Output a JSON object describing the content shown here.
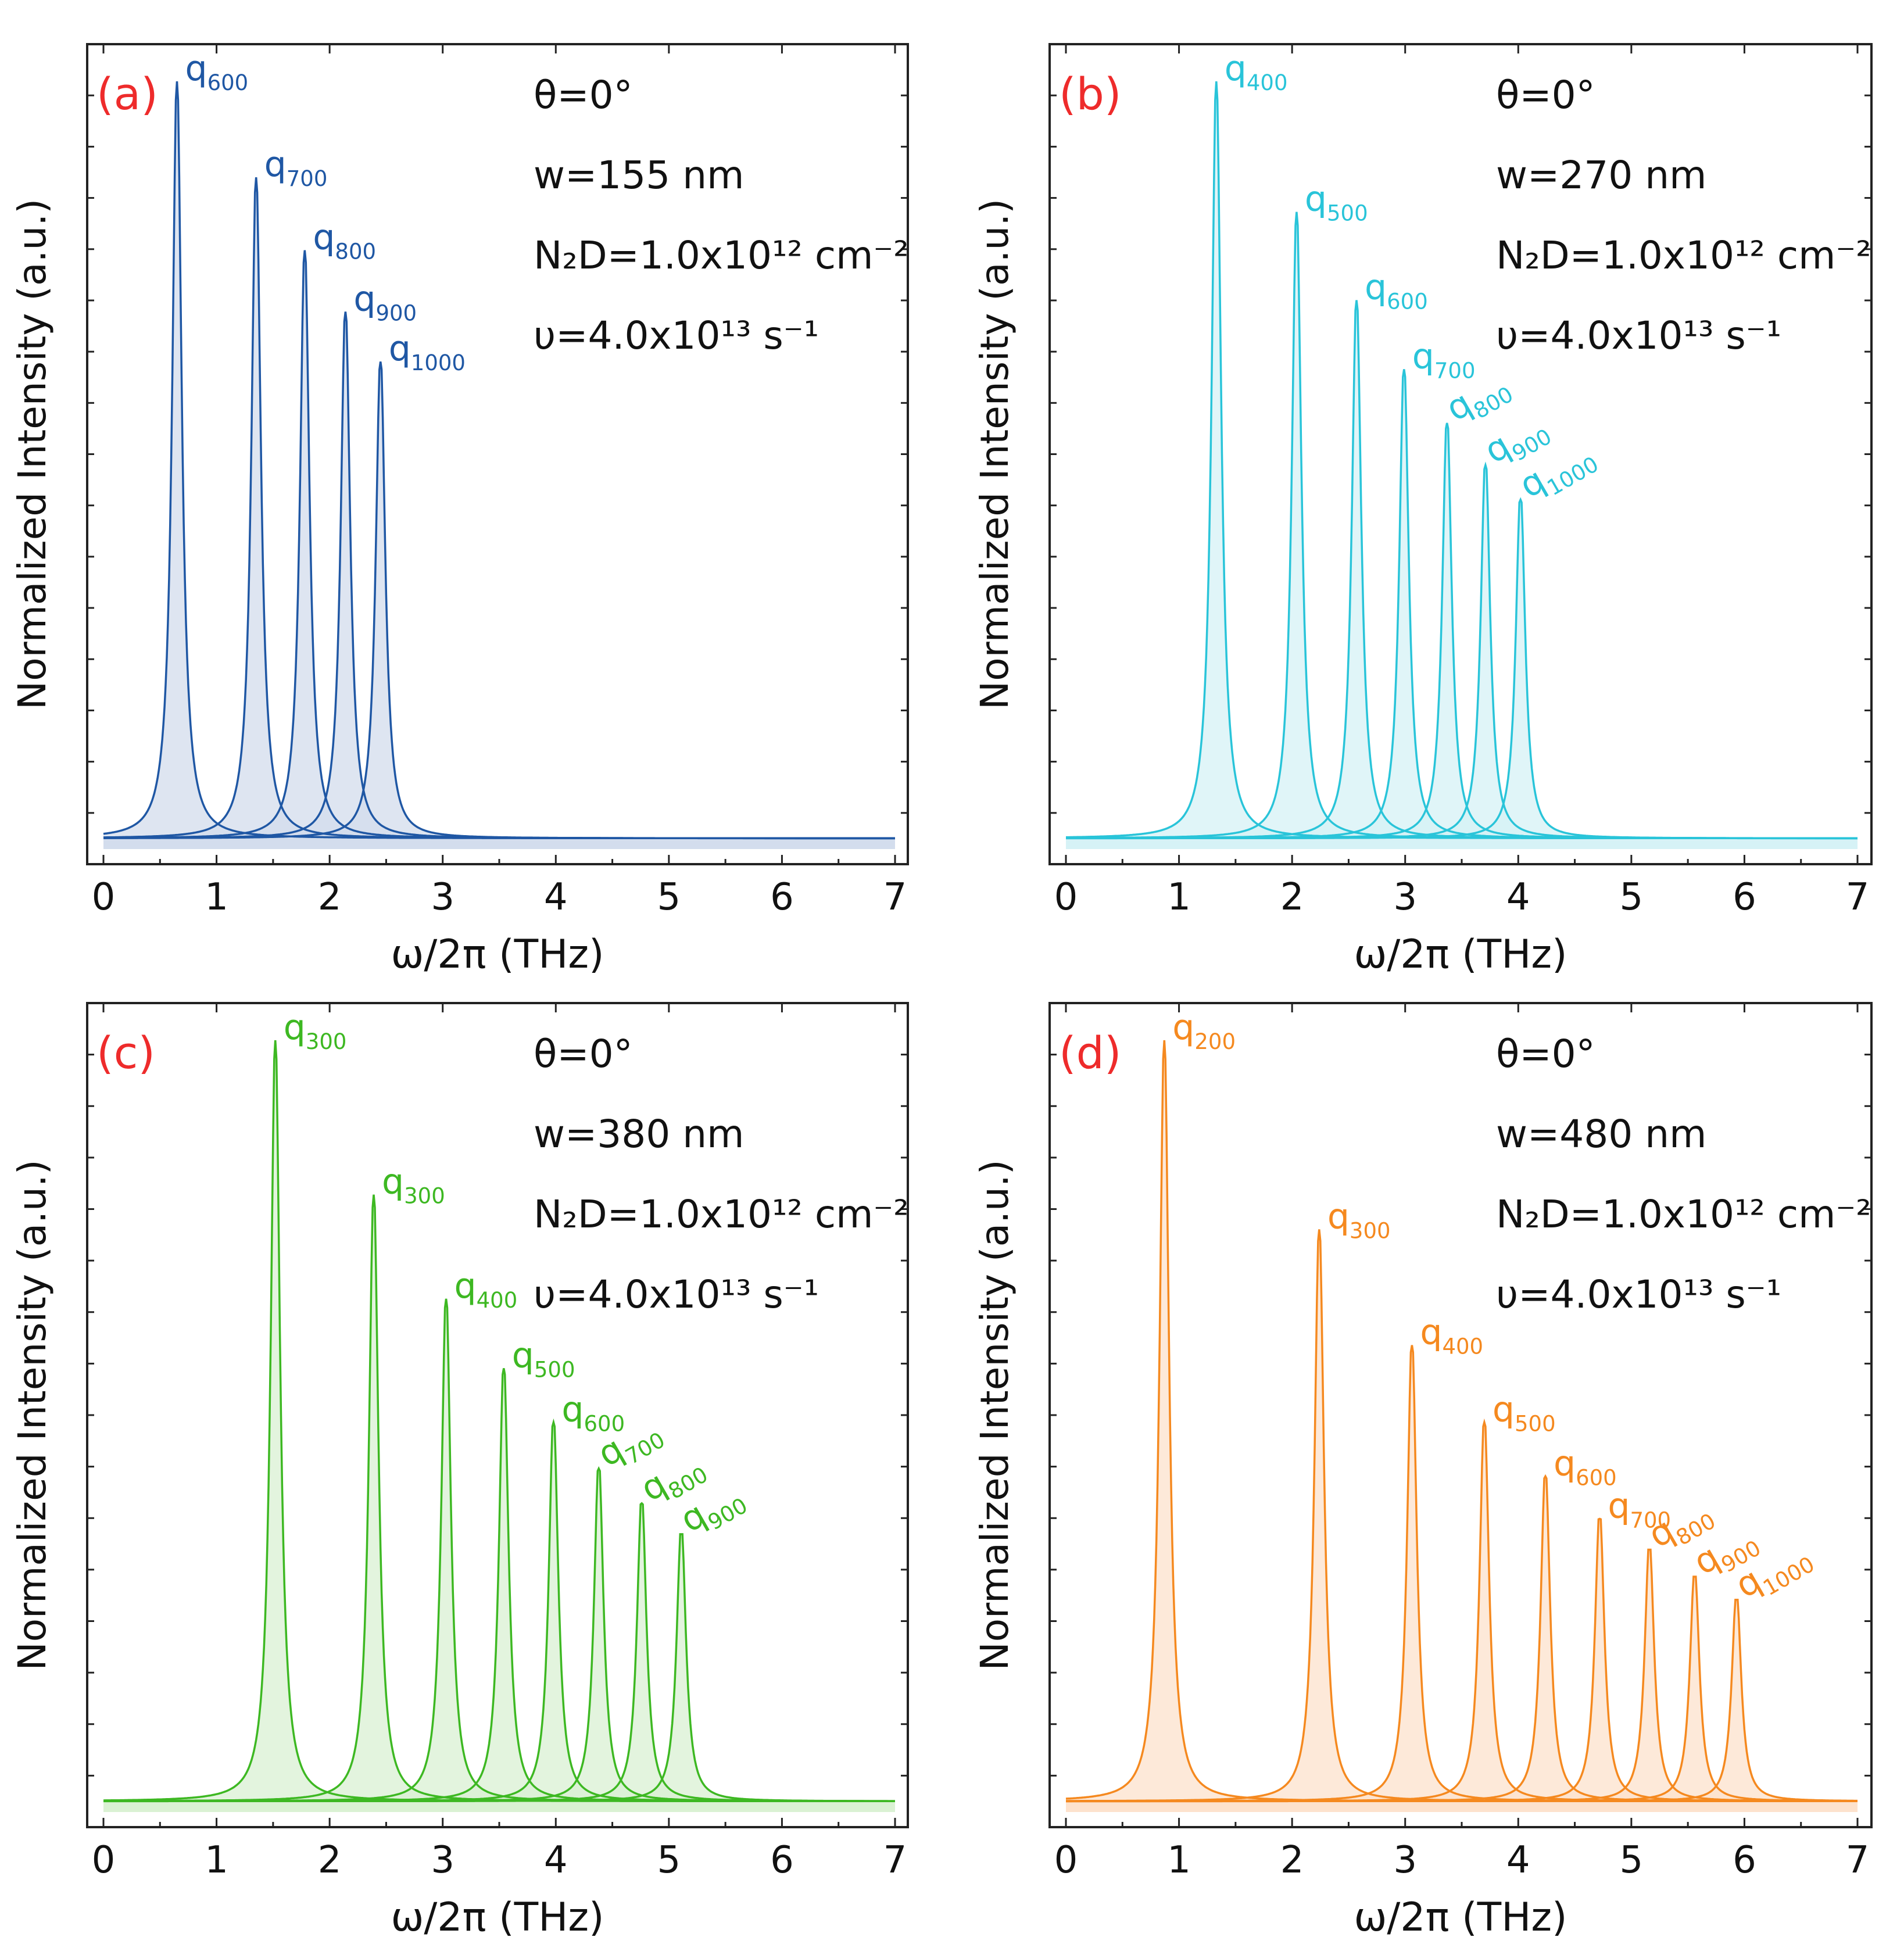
{
  "chart_data": [
    {
      "type": "line",
      "panel_label": "(a)",
      "color": "#1f57a4",
      "fill": "#d3dcec",
      "xlabel": "ω/2π (THz)",
      "ylabel": "Normalized Intensity (a.u.)",
      "xlim": [
        0,
        7
      ],
      "xticks": [
        "0",
        "1",
        "2",
        "3",
        "4",
        "5",
        "6",
        "7"
      ],
      "params": {
        "theta": "θ=0°",
        "w": "w=155 nm",
        "n2d": "N₂D=1.0x10¹² cm⁻²",
        "nu": "υ=4.0x10¹³ s⁻¹"
      },
      "series": [
        {
          "name": "q600",
          "base": "q",
          "sub": "600",
          "x": 0.65,
          "peak": 1.0
        },
        {
          "name": "q700",
          "base": "q",
          "sub": "700",
          "x": 1.35,
          "peak": 0.875
        },
        {
          "name": "q800",
          "base": "q",
          "sub": "800",
          "x": 1.78,
          "peak": 0.78
        },
        {
          "name": "q900",
          "base": "q",
          "sub": "900",
          "x": 2.14,
          "peak": 0.7
        },
        {
          "name": "q1000",
          "base": "q",
          "sub": "1000",
          "x": 2.45,
          "peak": 0.635
        }
      ]
    },
    {
      "type": "line",
      "panel_label": "(b)",
      "color": "#29c4d9",
      "fill": "#d5f1f5",
      "xlabel": "ω/2π (THz)",
      "ylabel": "Normalized Intensity (a.u.)",
      "xlim": [
        0,
        7
      ],
      "xticks": [
        "0",
        "1",
        "2",
        "3",
        "4",
        "5",
        "6",
        "7"
      ],
      "params": {
        "theta": "θ=0°",
        "w": "w=270 nm",
        "n2d": "N₂D=1.0x10¹² cm⁻²",
        "nu": "υ=4.0x10¹³ s⁻¹"
      },
      "series": [
        {
          "name": "q400",
          "base": "q",
          "sub": "400",
          "x": 1.33,
          "peak": 1.0
        },
        {
          "name": "q500",
          "base": "q",
          "sub": "500",
          "x": 2.04,
          "peak": 0.83
        },
        {
          "name": "q600",
          "base": "q",
          "sub": "600",
          "x": 2.57,
          "peak": 0.715
        },
        {
          "name": "q700",
          "base": "q",
          "sub": "700",
          "x": 2.99,
          "peak": 0.625
        },
        {
          "name": "q800",
          "base": "q",
          "sub": "800",
          "x": 3.37,
          "peak": 0.555
        },
        {
          "name": "q900",
          "base": "q",
          "sub": "900",
          "x": 3.71,
          "peak": 0.5
        },
        {
          "name": "q1000",
          "base": "q",
          "sub": "1000",
          "x": 4.02,
          "peak": 0.455
        }
      ]
    },
    {
      "type": "line",
      "panel_label": "(c)",
      "color": "#3db822",
      "fill": "#d9f0d3",
      "xlabel": "ω/2π (THz)",
      "ylabel": "Normalized Intensity (a.u.)",
      "xlim": [
        0,
        7
      ],
      "xticks": [
        "0",
        "1",
        "2",
        "3",
        "4",
        "5",
        "6",
        "7"
      ],
      "params": {
        "theta": "θ=0°",
        "w": "w=380 nm",
        "n2d": "N₂D=1.0x10¹² cm⁻²",
        "nu": "υ=4.0x10¹³ s⁻¹"
      },
      "series": [
        {
          "name": "q300",
          "base": "q",
          "sub": "300",
          "x": 1.52,
          "peak": 1.0
        },
        {
          "name": "q300",
          "base": "q",
          "sub": "300",
          "x": 2.39,
          "peak": 0.8
        },
        {
          "name": "q400",
          "base": "q",
          "sub": "400",
          "x": 3.03,
          "peak": 0.665
        },
        {
          "name": "q500",
          "base": "q",
          "sub": "500",
          "x": 3.54,
          "peak": 0.575
        },
        {
          "name": "q600",
          "base": "q",
          "sub": "600",
          "x": 3.98,
          "peak": 0.505
        },
        {
          "name": "q700",
          "base": "q",
          "sub": "700",
          "x": 4.38,
          "peak": 0.445
        },
        {
          "name": "q800",
          "base": "q",
          "sub": "800",
          "x": 4.76,
          "peak": 0.4
        },
        {
          "name": "q900",
          "base": "q",
          "sub": "900",
          "x": 5.11,
          "peak": 0.36
        }
      ]
    },
    {
      "type": "line",
      "panel_label": "(d)",
      "color": "#f5891f",
      "fill": "#fce2cc",
      "xlabel": "ω/2π (THz)",
      "ylabel": "Normalized Intensity (a.u.)",
      "xlim": [
        0,
        7
      ],
      "xticks": [
        "0",
        "1",
        "2",
        "3",
        "4",
        "5",
        "6",
        "7"
      ],
      "params": {
        "theta": "θ=0°",
        "w": "w=480 nm",
        "n2d": "N₂D=1.0x10¹² cm⁻²",
        "nu": "υ=4.0x10¹³ s⁻¹"
      },
      "series": [
        {
          "name": "q200",
          "base": "q",
          "sub": "200",
          "x": 0.87,
          "peak": 1.0
        },
        {
          "name": "q300",
          "base": "q",
          "sub": "300",
          "x": 2.24,
          "peak": 0.755
        },
        {
          "name": "q400",
          "base": "q",
          "sub": "400",
          "x": 3.06,
          "peak": 0.605
        },
        {
          "name": "q500",
          "base": "q",
          "sub": "500",
          "x": 3.7,
          "peak": 0.505
        },
        {
          "name": "q600",
          "base": "q",
          "sub": "600",
          "x": 4.24,
          "peak": 0.435
        },
        {
          "name": "q700",
          "base": "q",
          "sub": "700",
          "x": 4.72,
          "peak": 0.38
        },
        {
          "name": "q800",
          "base": "q",
          "sub": "800",
          "x": 5.16,
          "peak": 0.34
        },
        {
          "name": "q900",
          "base": "q",
          "sub": "900",
          "x": 5.56,
          "peak": 0.305
        },
        {
          "name": "q1000",
          "base": "q",
          "sub": "1000",
          "x": 5.93,
          "peak": 0.275
        }
      ]
    }
  ]
}
